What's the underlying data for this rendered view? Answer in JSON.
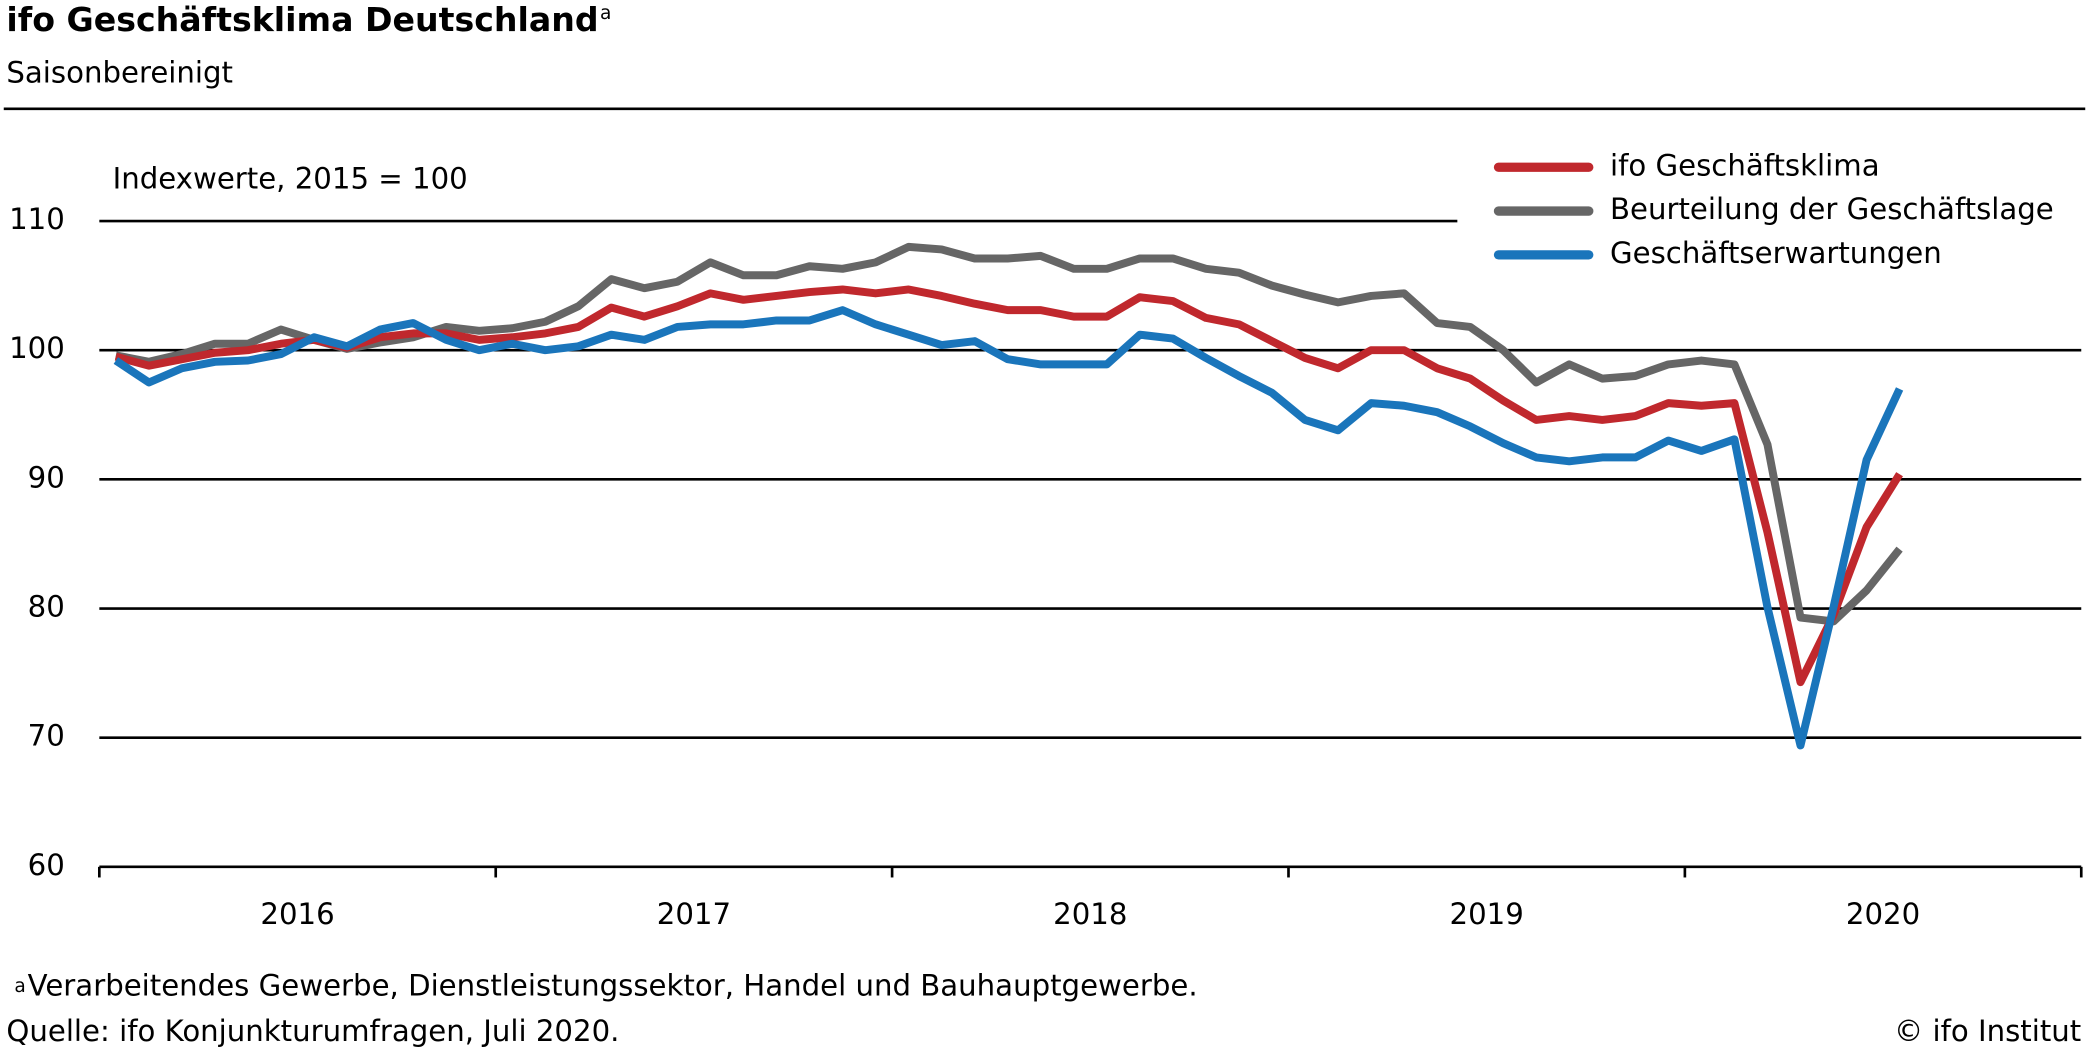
{
  "chart_data": {
    "type": "line",
    "title": "ifo Geschäftsklima Deutschland",
    "title_marker": "a",
    "subtitle": "Saisonbereinigt",
    "y_axis_label": "Indexwerte, 2015 = 100",
    "year_labels": [
      "2016",
      "2017",
      "2018",
      "2019",
      "2020"
    ],
    "ylim": [
      60,
      117
    ],
    "yticks": [
      60,
      70,
      80,
      90,
      100,
      110
    ],
    "grid": true,
    "series": [
      {
        "name": "ifo Geschäftsklima",
        "color": "#c0282d",
        "values": [
          99.5,
          98.8,
          99.3,
          99.8,
          100.0,
          100.5,
          100.8,
          100.2,
          101.0,
          101.3,
          101.3,
          100.8,
          101.0,
          101.3,
          101.8,
          103.3,
          102.6,
          103.4,
          104.4,
          103.9,
          104.2,
          104.5,
          104.7,
          104.4,
          104.7,
          104.2,
          103.6,
          103.1,
          103.1,
          102.6,
          102.6,
          104.1,
          103.8,
          102.5,
          102.0,
          100.7,
          99.4,
          98.6,
          100.0,
          100.0,
          98.6,
          97.8,
          96.1,
          94.6,
          94.9,
          94.6,
          94.9,
          95.9,
          95.7,
          95.9,
          85.9,
          74.3,
          79.5,
          86.3,
          90.4
        ]
      },
      {
        "name": "Beurteilung der Geschäftslage",
        "color": "#666666",
        "values": [
          99.6,
          99.1,
          99.7,
          100.5,
          100.5,
          101.6,
          100.8,
          100.1,
          100.6,
          101.0,
          101.8,
          101.5,
          101.7,
          102.2,
          103.4,
          105.5,
          104.8,
          105.3,
          106.8,
          105.8,
          105.8,
          106.5,
          106.3,
          106.8,
          108.0,
          107.8,
          107.1,
          107.1,
          107.3,
          106.3,
          106.3,
          107.1,
          107.1,
          106.3,
          106.0,
          105.0,
          104.3,
          103.7,
          104.2,
          104.4,
          102.1,
          101.8,
          100.0,
          97.5,
          98.9,
          97.8,
          98.0,
          98.9,
          99.2,
          98.9,
          92.7,
          79.3,
          79.0,
          81.4,
          84.6
        ]
      },
      {
        "name": "Geschäftserwartungen",
        "color": "#1a75bb",
        "values": [
          99.2,
          97.5,
          98.6,
          99.1,
          99.2,
          99.7,
          101.0,
          100.3,
          101.6,
          102.1,
          100.8,
          100.0,
          100.5,
          100.0,
          100.3,
          101.2,
          100.8,
          101.8,
          102.0,
          102.0,
          102.3,
          102.3,
          103.1,
          102.0,
          101.2,
          100.4,
          100.7,
          99.3,
          98.9,
          98.9,
          98.9,
          101.2,
          100.9,
          99.4,
          98.0,
          96.7,
          94.6,
          93.8,
          95.9,
          95.7,
          95.2,
          94.1,
          92.8,
          91.7,
          91.4,
          91.7,
          91.7,
          93.0,
          92.2,
          93.1,
          80.1,
          69.4,
          80.1,
          91.5,
          97.0
        ]
      }
    ],
    "footnote": {
      "marker": "a",
      "text": "Verarbeitendes Gewerbe, Dienstleistungssektor, Handel und Bauhauptgewerbe."
    },
    "source": "Quelle: ifo Konjunkturumfragen, Juli 2020.",
    "copyright": "© ifo Institut"
  }
}
